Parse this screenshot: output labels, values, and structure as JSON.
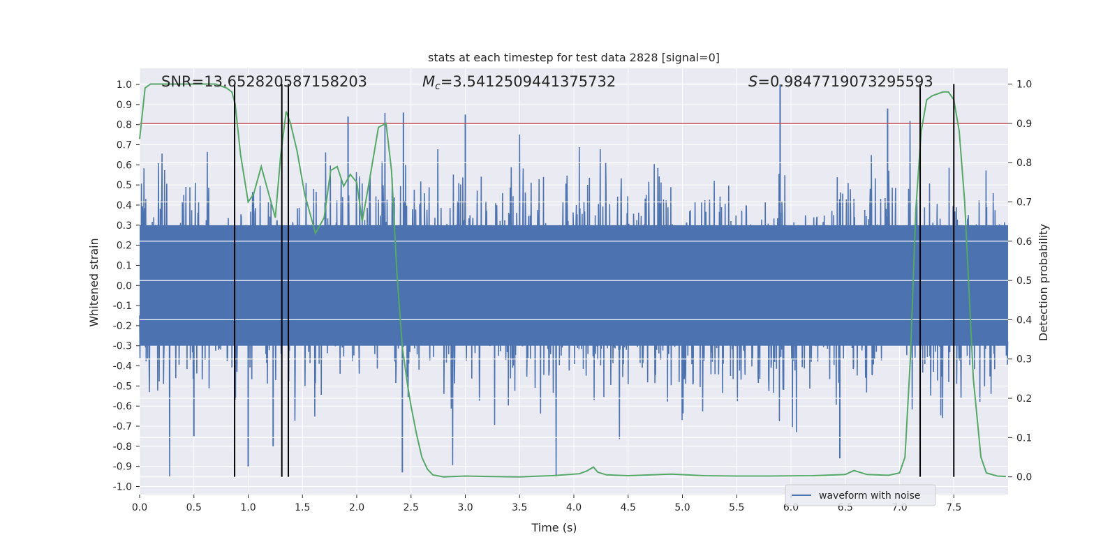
{
  "chart_data": {
    "type": "line",
    "title": "stats at each timestep for test data 2828 [signal=0]",
    "xlabel": "Time (s)",
    "ylabel_left": "Whitened strain",
    "ylabel_right": "Detection probability",
    "xlim": [
      0.0,
      8.0
    ],
    "ylim_left": [
      -1.04,
      1.08
    ],
    "ylim_right": [
      -0.045,
      1.04
    ],
    "x_ticks": [
      "0.0",
      "0.5",
      "1.0",
      "1.5",
      "2.0",
      "2.5",
      "3.0",
      "3.5",
      "4.0",
      "4.5",
      "5.0",
      "5.5",
      "6.0",
      "6.5",
      "7.0",
      "7.5"
    ],
    "y_ticks_left": [
      "1.0",
      "0.9",
      "0.8",
      "0.7",
      "0.6",
      "0.5",
      "0.4",
      "0.3",
      "0.2",
      "0.1",
      "0.0",
      "-0.1",
      "-0.2",
      "-0.3",
      "-0.4",
      "-0.5",
      "-0.6",
      "-0.7",
      "-0.8",
      "-0.9",
      "-1.0"
    ],
    "y_ticks_right": [
      "1.0",
      "0.9",
      "0.8",
      "0.7",
      "0.6",
      "0.5",
      "0.4",
      "0.3",
      "0.2",
      "0.1",
      "0.0"
    ],
    "annotations": {
      "snr": "SNR=13.652820587158203",
      "mc_symbol": "M",
      "mc_sub": "c",
      "mc_value": "=3.5412509441375732",
      "s_symbol": "S",
      "s_value": "=0.9847719073295593"
    },
    "threshold": {
      "value_right": 0.9,
      "color": "#c44e52"
    },
    "vertical_lines_x": [
      0.875,
      1.31,
      1.37,
      7.19,
      7.5
    ],
    "series": [
      {
        "name": "waveform with noise",
        "color": "#4c72b0",
        "description": "dense whitened strain noise, envelope approx",
        "noise_seed": 2828,
        "noise_amplitude": 0.35,
        "spikes": [
          {
            "x": 2.42,
            "y": -0.93
          },
          {
            "x": 2.43,
            "y": 0.86
          },
          {
            "x": 5.9,
            "y": 1.0
          },
          {
            "x": 6.89,
            "y": 0.88
          },
          {
            "x": 1.92,
            "y": 0.84
          },
          {
            "x": 3.0,
            "y": 0.85
          },
          {
            "x": 1.0,
            "y": -0.9
          },
          {
            "x": 6.45,
            "y": -0.86
          },
          {
            "x": 0.5,
            "y": -0.75
          },
          {
            "x": 1.23,
            "y": -0.8
          }
        ]
      },
      {
        "name": "Detection probability",
        "color": "#55a868",
        "axis": "right",
        "x": [
          0.0,
          0.05,
          0.1,
          0.3,
          0.5,
          0.7,
          0.8,
          0.85,
          0.88,
          0.93,
          1.0,
          1.05,
          1.12,
          1.18,
          1.25,
          1.3,
          1.35,
          1.39,
          1.45,
          1.52,
          1.62,
          1.7,
          1.76,
          1.82,
          1.88,
          1.94,
          2.0,
          2.05,
          2.12,
          2.2,
          2.27,
          2.32,
          2.37,
          2.42,
          2.47,
          2.5,
          2.55,
          2.6,
          2.65,
          2.7,
          2.8,
          3.0,
          3.2,
          3.5,
          3.8,
          4.05,
          4.12,
          4.18,
          4.22,
          4.3,
          4.5,
          4.8,
          4.9,
          5.2,
          5.5,
          5.8,
          6.2,
          6.5,
          6.58,
          6.7,
          6.9,
          7.0,
          7.05,
          7.1,
          7.15,
          7.2,
          7.25,
          7.3,
          7.4,
          7.45,
          7.5,
          7.55,
          7.6,
          7.68,
          7.75,
          7.8,
          7.9,
          7.98
        ],
        "values": [
          0.86,
          0.99,
          1.0,
          1.0,
          1.0,
          1.0,
          0.99,
          0.98,
          0.95,
          0.82,
          0.7,
          0.72,
          0.79,
          0.73,
          0.66,
          0.82,
          0.93,
          0.9,
          0.83,
          0.72,
          0.62,
          0.66,
          0.78,
          0.79,
          0.74,
          0.77,
          0.75,
          0.65,
          0.76,
          0.89,
          0.9,
          0.78,
          0.52,
          0.33,
          0.23,
          0.18,
          0.11,
          0.05,
          0.02,
          0.005,
          0.0,
          0.002,
          0.001,
          0.0,
          0.003,
          0.008,
          0.015,
          0.025,
          0.012,
          0.005,
          0.003,
          0.006,
          0.007,
          0.003,
          0.002,
          0.002,
          0.003,
          0.006,
          0.016,
          0.006,
          0.004,
          0.01,
          0.05,
          0.3,
          0.68,
          0.88,
          0.96,
          0.97,
          0.98,
          0.98,
          0.96,
          0.88,
          0.7,
          0.25,
          0.05,
          0.01,
          0.002,
          0.001
        ]
      }
    ],
    "legend": {
      "label": "waveform with noise",
      "placement": "lower-right"
    }
  }
}
